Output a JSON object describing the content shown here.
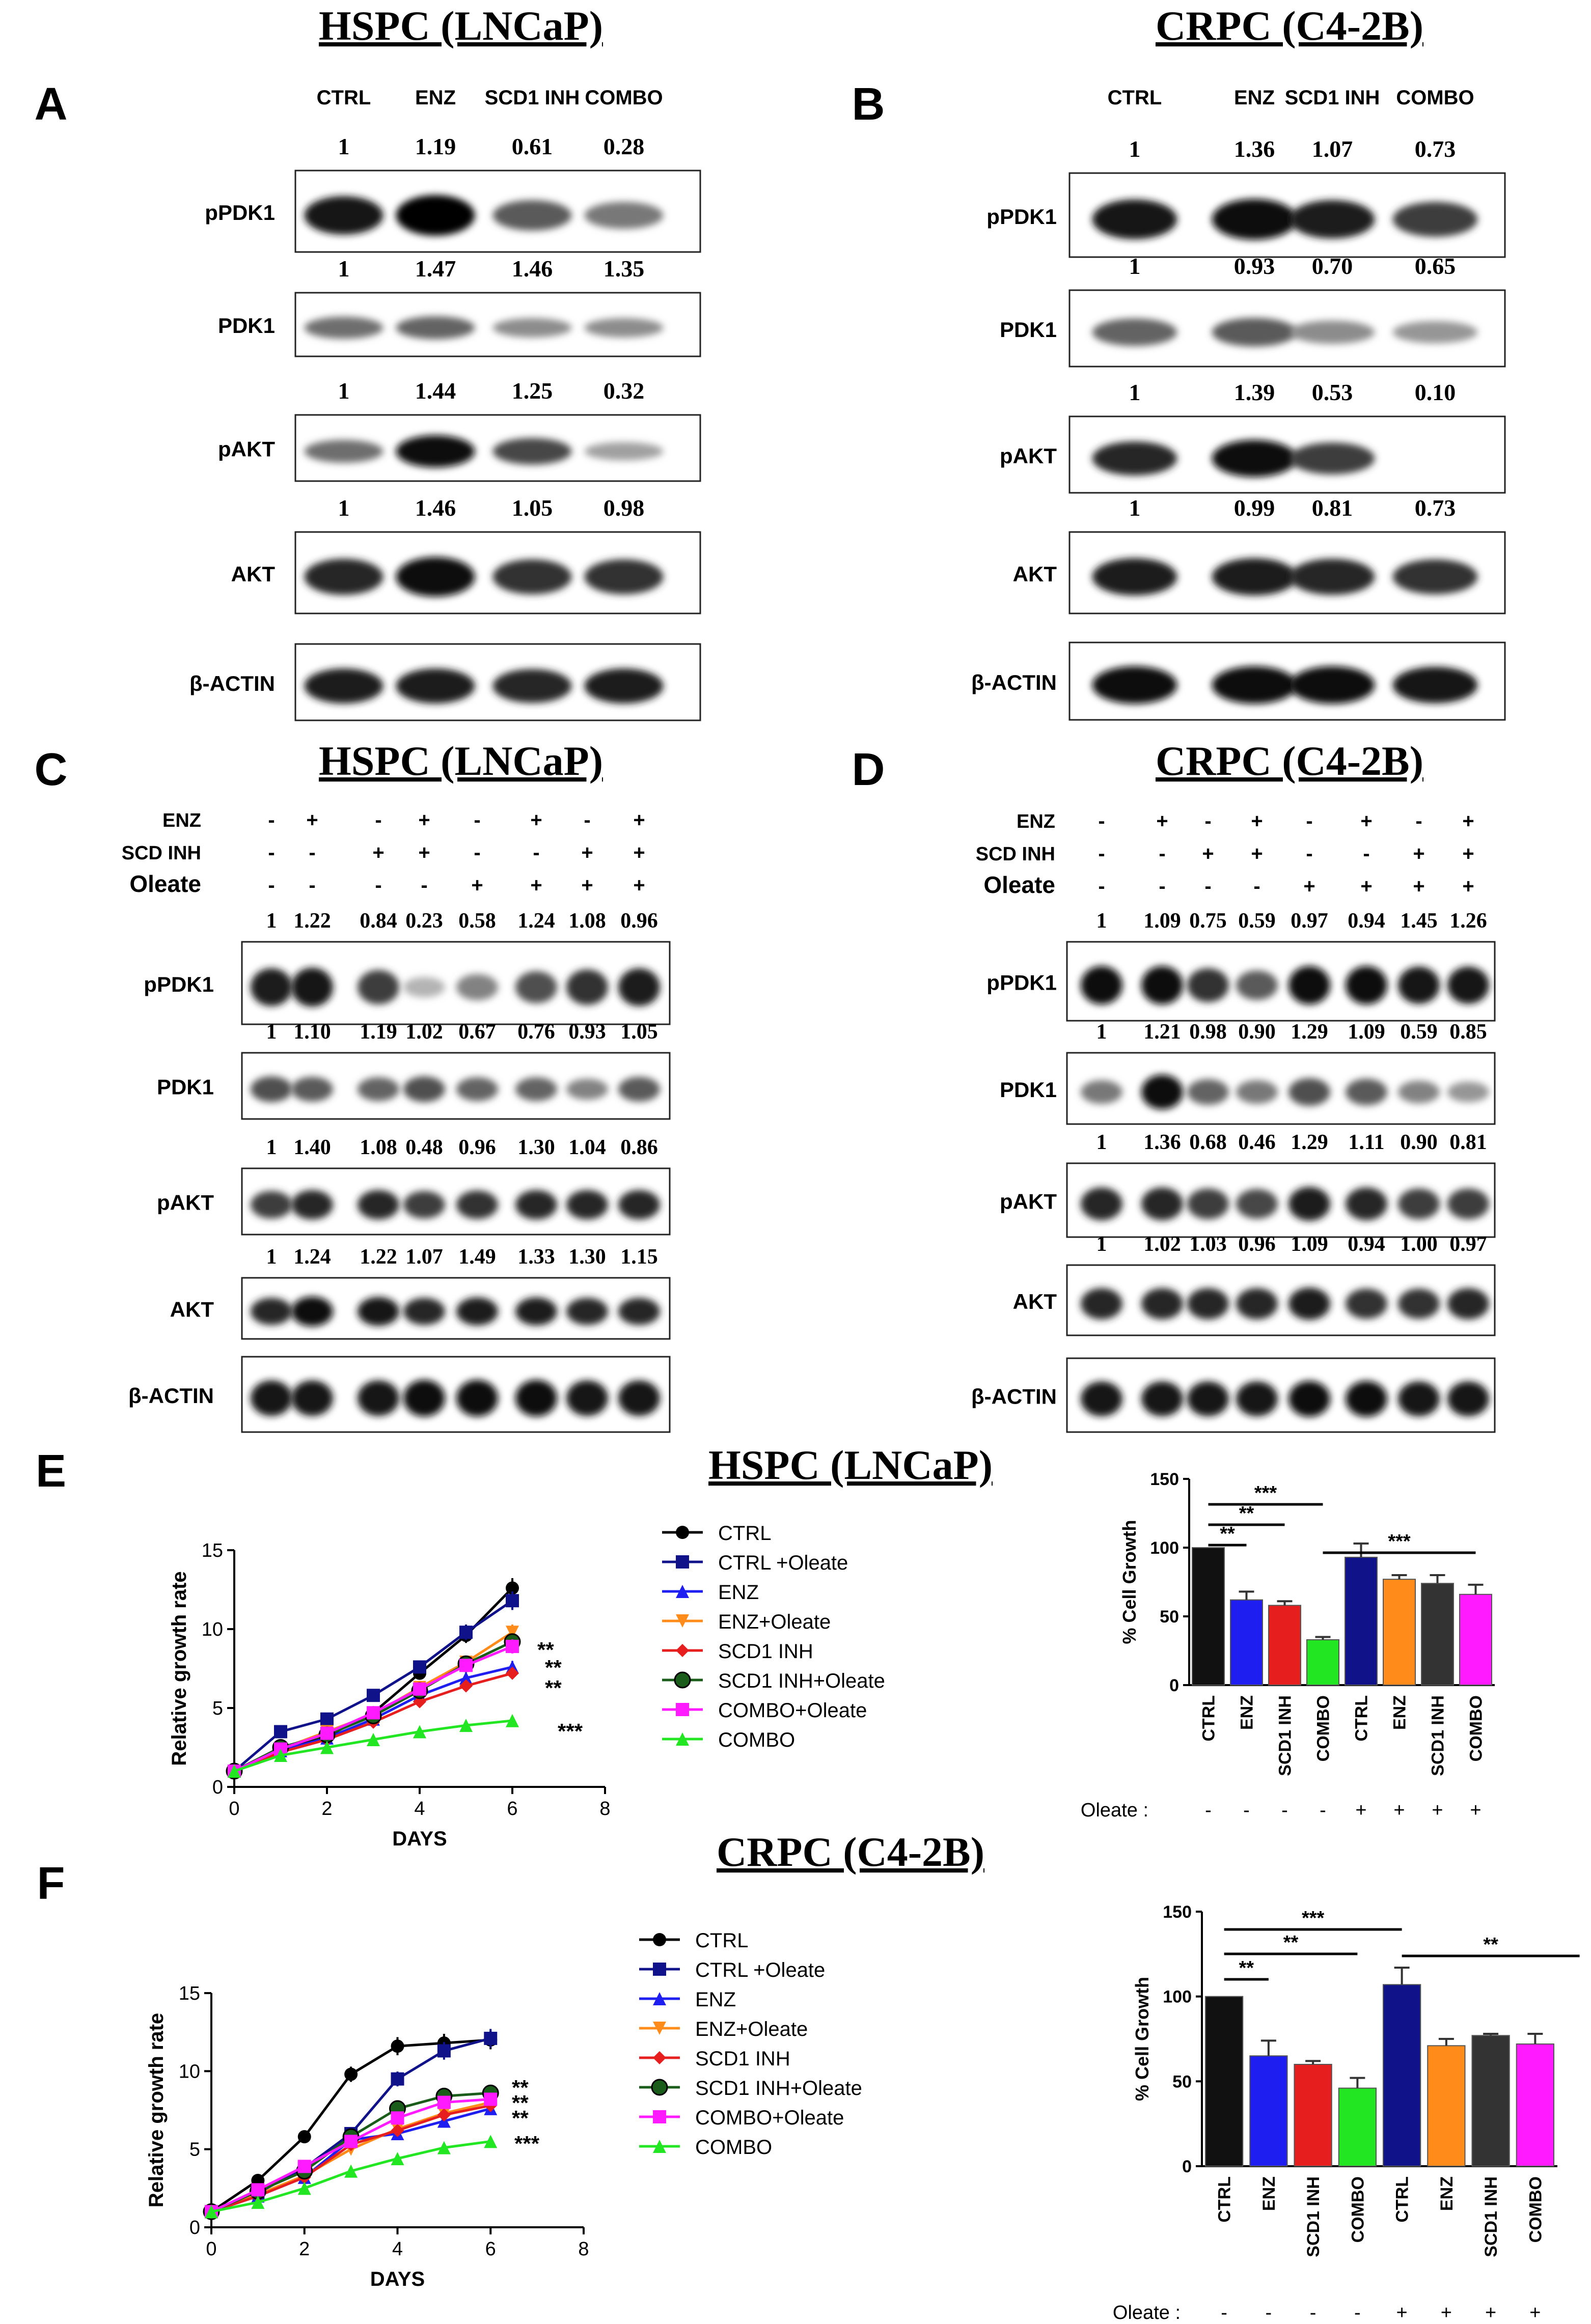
{
  "panels": {
    "A": {
      "letter": "A",
      "title": "HSPC (LNCaP)",
      "columns": [
        "CTRL",
        "ENZ",
        "SCD1 INH",
        "COMBO"
      ],
      "blots": [
        {
          "label": "pPDK1",
          "quant": [
            "1",
            "1.19",
            "0.61",
            "0.28"
          ],
          "intensity": [
            0.9,
            1.0,
            0.55,
            0.4
          ]
        },
        {
          "label": "PDK1",
          "quant": [
            "1",
            "1.47",
            "1.46",
            "1.35"
          ],
          "intensity": [
            0.45,
            0.5,
            0.3,
            0.3
          ]
        },
        {
          "label": "pAKT",
          "quant": [
            "1",
            "1.44",
            "1.25",
            "0.32"
          ],
          "intensity": [
            0.45,
            0.95,
            0.65,
            0.2
          ]
        },
        {
          "label": "AKT",
          "quant": [
            "1",
            "1.46",
            "1.05",
            "0.98"
          ],
          "intensity": [
            0.8,
            0.95,
            0.75,
            0.75
          ]
        },
        {
          "label": "β-ACTIN",
          "quant": [],
          "intensity": [
            0.85,
            0.85,
            0.8,
            0.85
          ]
        }
      ]
    },
    "B": {
      "letter": "B",
      "title": "CRPC (C4-2B)",
      "columns": [
        "CTRL",
        "ENZ",
        "SCD1 INH",
        "COMBO"
      ],
      "blots": [
        {
          "label": "pPDK1",
          "quant": [
            "1",
            "1.36",
            "1.07",
            "0.73"
          ],
          "intensity": [
            0.9,
            0.95,
            0.85,
            0.7
          ]
        },
        {
          "label": "PDK1",
          "quant": [
            "1",
            "0.93",
            "0.70",
            "0.65"
          ],
          "intensity": [
            0.5,
            0.55,
            0.3,
            0.25
          ]
        },
        {
          "label": "pAKT",
          "quant": [
            "1",
            "1.39",
            "0.53",
            "0.10"
          ],
          "intensity": [
            0.8,
            0.95,
            0.7,
            0.0
          ]
        },
        {
          "label": "AKT",
          "quant": [
            "1",
            "0.99",
            "0.81",
            "0.73"
          ],
          "intensity": [
            0.85,
            0.85,
            0.8,
            0.75
          ]
        },
        {
          "label": "β-ACTIN",
          "quant": [],
          "intensity": [
            0.95,
            0.95,
            0.95,
            0.9
          ]
        }
      ]
    },
    "C": {
      "letter": "C",
      "title": "HSPC (LNCaP)",
      "conditions": [
        {
          "name": "ENZ",
          "signs": [
            "-",
            "+",
            "-",
            "+",
            "-",
            "+",
            "-",
            "+"
          ]
        },
        {
          "name": "SCD INH",
          "signs": [
            "-",
            "-",
            "+",
            "+",
            "-",
            "-",
            "+",
            "+"
          ]
        },
        {
          "name": "Oleate",
          "signs": [
            "-",
            "-",
            "-",
            "-",
            "+",
            "+",
            "+",
            "+"
          ]
        }
      ],
      "blots": [
        {
          "label": "pPDK1",
          "quant": [
            "1",
            "1.22",
            "0.84",
            "0.23",
            "0.58",
            "1.24",
            "1.08",
            "0.96"
          ],
          "intensity": [
            0.85,
            0.9,
            0.7,
            0.1,
            0.35,
            0.6,
            0.75,
            0.85
          ]
        },
        {
          "label": "PDK1",
          "quant": [
            "1",
            "1.10",
            "1.19",
            "1.02",
            "0.67",
            "0.76",
            "0.93",
            "1.05"
          ],
          "intensity": [
            0.6,
            0.55,
            0.5,
            0.6,
            0.5,
            0.5,
            0.35,
            0.55
          ]
        },
        {
          "label": "pAKT",
          "quant": [
            "1",
            "1.40",
            "1.08",
            "0.48",
            "0.96",
            "1.30",
            "1.04",
            "0.86"
          ],
          "intensity": [
            0.7,
            0.8,
            0.8,
            0.7,
            0.75,
            0.8,
            0.8,
            0.8
          ]
        },
        {
          "label": "AKT",
          "quant": [
            "1",
            "1.24",
            "1.22",
            "1.07",
            "1.49",
            "1.33",
            "1.30",
            "1.15"
          ],
          "intensity": [
            0.8,
            0.95,
            0.9,
            0.8,
            0.85,
            0.85,
            0.8,
            0.8
          ]
        },
        {
          "label": "β-ACTIN",
          "quant": [],
          "intensity": [
            0.9,
            0.9,
            0.9,
            0.95,
            0.95,
            0.95,
            0.9,
            0.9
          ]
        }
      ]
    },
    "D": {
      "letter": "D",
      "title": "CRPC (C4-2B)",
      "conditions": [
        {
          "name": "ENZ",
          "signs": [
            "-",
            "+",
            "-",
            "+",
            "-",
            "+",
            "-",
            "+"
          ]
        },
        {
          "name": "SCD INH",
          "signs": [
            "-",
            "-",
            "+",
            "+",
            "-",
            "-",
            "+",
            "+"
          ]
        },
        {
          "name": "Oleate",
          "signs": [
            "-",
            "-",
            "-",
            "-",
            "+",
            "+",
            "+",
            "+"
          ]
        }
      ],
      "blots": [
        {
          "label": "pPDK1",
          "quant": [
            "1",
            "1.09",
            "0.75",
            "0.59",
            "0.97",
            "0.94",
            "1.45",
            "1.26"
          ],
          "intensity": [
            0.95,
            0.95,
            0.75,
            0.55,
            0.95,
            0.95,
            0.9,
            0.9
          ]
        },
        {
          "label": "PDK1",
          "quant": [
            "1",
            "1.21",
            "0.98",
            "0.90",
            "1.29",
            "1.09",
            "0.59",
            "0.85"
          ],
          "intensity": [
            0.4,
            0.95,
            0.5,
            0.4,
            0.6,
            0.55,
            0.35,
            0.25
          ]
        },
        {
          "label": "pAKT",
          "quant": [
            "1",
            "1.36",
            "0.68",
            "0.46",
            "1.29",
            "1.11",
            "0.90",
            "0.81"
          ],
          "intensity": [
            0.8,
            0.8,
            0.7,
            0.65,
            0.85,
            0.8,
            0.7,
            0.7
          ]
        },
        {
          "label": "AKT",
          "quant": [
            "1",
            "1.02",
            "1.03",
            "0.96",
            "1.09",
            "0.94",
            "1.00",
            "0.97"
          ],
          "intensity": [
            0.8,
            0.8,
            0.8,
            0.8,
            0.85,
            0.75,
            0.75,
            0.8
          ]
        },
        {
          "label": "β-ACTIN",
          "quant": [],
          "intensity": [
            0.9,
            0.9,
            0.9,
            0.9,
            0.95,
            0.95,
            0.9,
            0.9
          ]
        }
      ]
    },
    "E": {
      "letter": "E",
      "title": "HSPC (LNCaP)"
    },
    "F": {
      "letter": "F",
      "title": "CRPC (C4-2B)"
    }
  },
  "chart_data": [
    {
      "id": "E-line",
      "type": "line",
      "xlabel": "DAYS",
      "ylabel": "Relative growth rate",
      "xlim": [
        0,
        8
      ],
      "ylim": [
        0,
        15
      ],
      "xticks": [
        0,
        2,
        4,
        6,
        8
      ],
      "yticks": [
        0,
        5,
        10,
        15
      ],
      "x": [
        0,
        1,
        2,
        3,
        4,
        5,
        6
      ],
      "series": [
        {
          "name": "CTRL",
          "color": "#000000",
          "marker": "circle",
          "values": [
            1,
            2.5,
            3.2,
            4.7,
            7.2,
            9.6,
            12.6
          ]
        },
        {
          "name": "CTRL +Oleate",
          "color": "#10128a",
          "marker": "square",
          "values": [
            1,
            3.5,
            4.3,
            5.8,
            7.6,
            9.8,
            11.8
          ]
        },
        {
          "name": "ENZ",
          "color": "#1e1ef0",
          "marker": "triangle",
          "values": [
            1,
            2.3,
            3.1,
            4.3,
            5.8,
            6.9,
            7.6
          ]
        },
        {
          "name": "ENZ+Oleate",
          "color": "#ff8c1a",
          "marker": "tridown",
          "values": [
            1,
            2.4,
            3.5,
            4.6,
            6.3,
            7.9,
            9.8
          ]
        },
        {
          "name": "SCD1 INH",
          "color": "#e61e1e",
          "marker": "diamond",
          "values": [
            1,
            2.2,
            3.0,
            4.1,
            5.4,
            6.4,
            7.2
          ]
        },
        {
          "name": "SCD1 INH+Oleate",
          "color": "#1a5c1a",
          "marker": "circleg",
          "values": [
            1,
            2.5,
            3.3,
            4.5,
            6.1,
            7.8,
            9.2
          ]
        },
        {
          "name": "COMBO+Oleate",
          "color": "#ff1aff",
          "marker": "square",
          "values": [
            1,
            2.4,
            3.4,
            4.7,
            6.2,
            7.7,
            8.9
          ]
        },
        {
          "name": "COMBO",
          "color": "#22e622",
          "marker": "triangle",
          "values": [
            1,
            2.0,
            2.5,
            3.0,
            3.5,
            3.9,
            4.2
          ]
        }
      ],
      "annotations": [
        "**",
        "**",
        "**",
        "***"
      ]
    },
    {
      "id": "E-bar",
      "type": "bar",
      "ylabel": "% Cell Growth",
      "ylim": [
        0,
        150
      ],
      "yticks": [
        0,
        50,
        100,
        150
      ],
      "categories": [
        "CTRL",
        "ENZ",
        "SCD1 INH",
        "COMBO",
        "CTRL",
        "ENZ",
        "SCD1 INH",
        "COMBO"
      ],
      "values": [
        100,
        62,
        58,
        33,
        93,
        77,
        74,
        66
      ],
      "errors": [
        0,
        6,
        3,
        2,
        10,
        3,
        6,
        7
      ],
      "colors": [
        "#111111",
        "#1e1ef0",
        "#e61e1e",
        "#22e622",
        "#10128a",
        "#ff8c1a",
        "#333333",
        "#ff1aff"
      ],
      "oleate_label": "Oleate :",
      "oleate": [
        "-",
        "-",
        "-",
        "-",
        "+",
        "+",
        "+",
        "+"
      ],
      "significance": [
        "**",
        "**",
        "***",
        "***"
      ]
    },
    {
      "id": "F-line",
      "type": "line",
      "xlabel": "DAYS",
      "ylabel": "Relative growth rate",
      "xlim": [
        0,
        8
      ],
      "ylim": [
        0,
        15
      ],
      "xticks": [
        0,
        2,
        4,
        6,
        8
      ],
      "yticks": [
        0,
        5,
        10,
        15
      ],
      "x": [
        0,
        1,
        2,
        3,
        4,
        5,
        6
      ],
      "series": [
        {
          "name": "CTRL",
          "color": "#000000",
          "marker": "circle",
          "values": [
            1,
            3.0,
            5.8,
            9.8,
            11.6,
            11.8,
            12.0
          ]
        },
        {
          "name": "CTRL +Oleate",
          "color": "#10128a",
          "marker": "square",
          "values": [
            1,
            2.2,
            3.8,
            6.0,
            9.5,
            11.3,
            12.1
          ]
        },
        {
          "name": "ENZ",
          "color": "#1e1ef0",
          "marker": "triangle",
          "values": [
            1,
            2.0,
            3.2,
            5.6,
            6.0,
            6.8,
            7.6
          ]
        },
        {
          "name": "ENZ+Oleate",
          "color": "#ff8c1a",
          "marker": "tridown",
          "values": [
            1,
            2.1,
            3.3,
            5.0,
            6.3,
            7.3,
            8.0
          ]
        },
        {
          "name": "SCD1 INH",
          "color": "#e61e1e",
          "marker": "diamond",
          "values": [
            1,
            2.0,
            3.2,
            5.3,
            6.2,
            7.2,
            7.8
          ]
        },
        {
          "name": "SCD1 INH+Oleate",
          "color": "#1a5c1a",
          "marker": "circleg",
          "values": [
            1,
            2.3,
            3.6,
            5.8,
            7.6,
            8.4,
            8.6
          ]
        },
        {
          "name": "COMBO+Oleate",
          "color": "#ff1aff",
          "marker": "square",
          "values": [
            1,
            2.4,
            3.9,
            5.5,
            7.0,
            8.0,
            8.2
          ]
        },
        {
          "name": "COMBO",
          "color": "#22e622",
          "marker": "triangle",
          "values": [
            1,
            1.6,
            2.5,
            3.6,
            4.4,
            5.1,
            5.5
          ]
        }
      ],
      "annotations": [
        "**",
        "**",
        "**",
        "***"
      ]
    },
    {
      "id": "F-bar",
      "type": "bar",
      "ylabel": "% Cell Growth",
      "ylim": [
        0,
        150
      ],
      "yticks": [
        0,
        50,
        100,
        150
      ],
      "categories": [
        "CTRL",
        "ENZ",
        "SCD1 INH",
        "COMBO",
        "CTRL",
        "ENZ",
        "SCD1 INH",
        "COMBO"
      ],
      "values": [
        100,
        65,
        60,
        46,
        107,
        71,
        77,
        72
      ],
      "errors": [
        0,
        9,
        2,
        6,
        10,
        4,
        1,
        6
      ],
      "colors": [
        "#111111",
        "#1e1ef0",
        "#e61e1e",
        "#22e622",
        "#10128a",
        "#ff8c1a",
        "#333333",
        "#ff1aff"
      ],
      "oleate_label": "Oleate :",
      "oleate": [
        "-",
        "-",
        "-",
        "-",
        "+",
        "+",
        "+",
        "+"
      ],
      "significance": [
        "**",
        "**",
        "***",
        "**"
      ]
    }
  ]
}
